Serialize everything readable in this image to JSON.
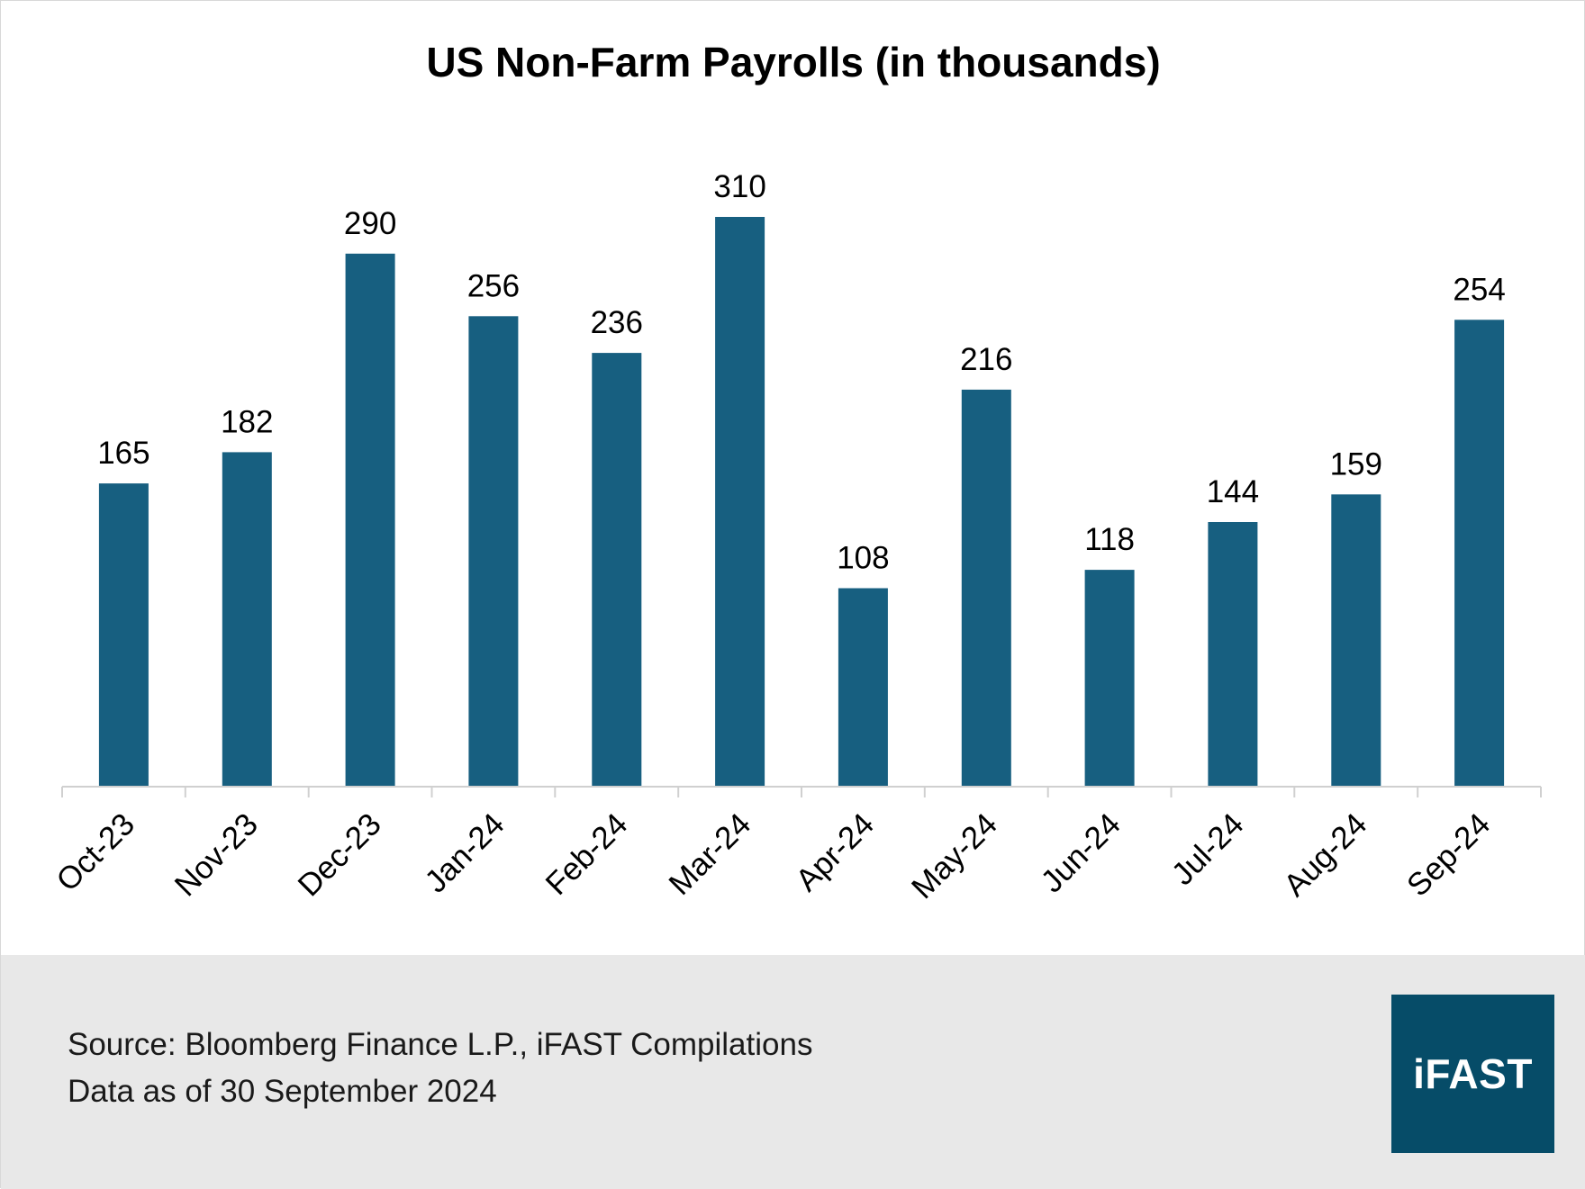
{
  "colors": {
    "bar": "#175f80",
    "axis": "#d0d0d0",
    "text": "#000000",
    "footer_bg": "#e8e8e8",
    "logo_bg": "#064c68",
    "logo_text": "#ffffff"
  },
  "chart_data": {
    "type": "bar",
    "title": "US Non-Farm Payrolls (in thousands)",
    "xlabel": "",
    "ylabel": "",
    "ylim": [
      0,
      350
    ],
    "grid": false,
    "categories": [
      "Oct-23",
      "Nov-23",
      "Dec-23",
      "Jan-24",
      "Feb-24",
      "Mar-24",
      "Apr-24",
      "May-24",
      "Jun-24",
      "Jul-24",
      "Aug-24",
      "Sep-24"
    ],
    "values": [
      165,
      182,
      290,
      256,
      236,
      310,
      108,
      216,
      118,
      144,
      159,
      254
    ]
  },
  "footer": {
    "source": "Source: Bloomberg Finance L.P., iFAST Compilations",
    "date": "Data as of 30 September 2024"
  },
  "logo": {
    "text": "iFAST"
  }
}
